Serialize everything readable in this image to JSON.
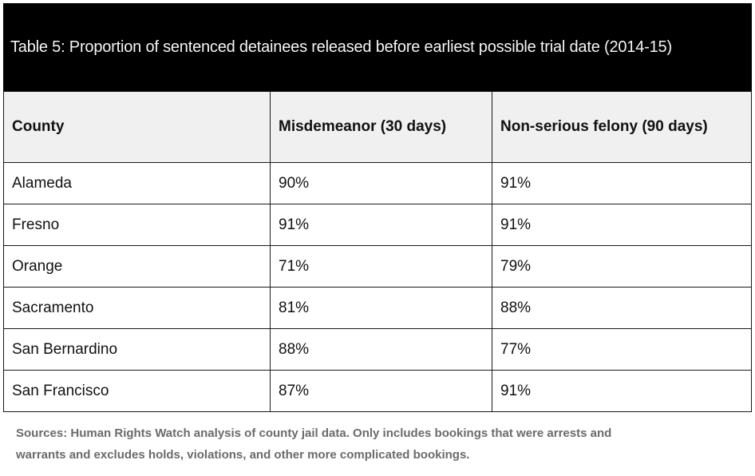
{
  "chart_data": {
    "type": "table",
    "title": "Table 5: Proportion of sentenced detainees released before earliest possible trial date (2014-15)",
    "columns": [
      "County",
      "Misdemeanor (30 days)",
      "Non-serious felony (90 days)"
    ],
    "rows": [
      [
        "Alameda",
        "90%",
        "91%"
      ],
      [
        "Fresno",
        "91%",
        "91%"
      ],
      [
        "Orange",
        "71%",
        "79%"
      ],
      [
        "Sacramento",
        "81%",
        "88%"
      ],
      [
        "San Bernardino",
        "88%",
        "77%"
      ],
      [
        "San Francisco",
        "87%",
        "91%"
      ]
    ],
    "values_numeric": {
      "misdemeanor_30_days_pct": [
        90,
        91,
        71,
        81,
        88,
        87
      ],
      "non_serious_felony_90_days_pct": [
        91,
        91,
        79,
        88,
        77,
        91
      ]
    },
    "source_note": "Sources: Human Rights Watch analysis of county jail data. Only includes bookings that were arrests and warrants and excludes holds, violations, and other more complicated bookings."
  },
  "footnote": {
    "lines": [
      "Sources: Human Rights Watch analysis of county jail data. Only includes bookings that were arrests and",
      "warrants and excludes holds, violations, and other more complicated bookings."
    ]
  },
  "colors": {
    "banner_bg": "#000000",
    "banner_text": "#f5f5f5",
    "header_row_bg": "#f0f0f0",
    "row_bg": "#ffffff",
    "border": "#1a1a1a",
    "footnote_text": "#6b6b6b"
  }
}
